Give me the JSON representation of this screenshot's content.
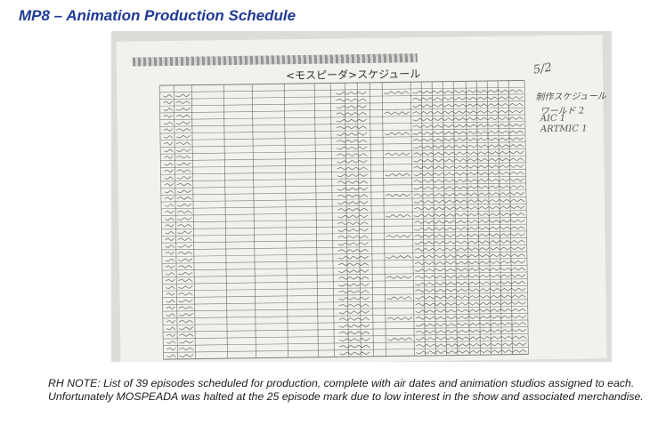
{
  "page": {
    "title": "MP8 – Animation Production Schedule"
  },
  "photo": {
    "schedule_heading": "<モスピーダ>スケジュール",
    "handwritten": {
      "date": "5/2",
      "line1": "制作スケジュール",
      "line2": "ワールド 2",
      "line3": "AIC 1",
      "line4": "ARTMIC 1"
    }
  },
  "note": {
    "text": "RH NOTE: List of 39 episodes scheduled for production, complete with air dates and animation studios assigned to each. Unfortunately MOSPEADA was halted at the 25 episode mark due to low interest in the show and associated merchandise."
  }
}
